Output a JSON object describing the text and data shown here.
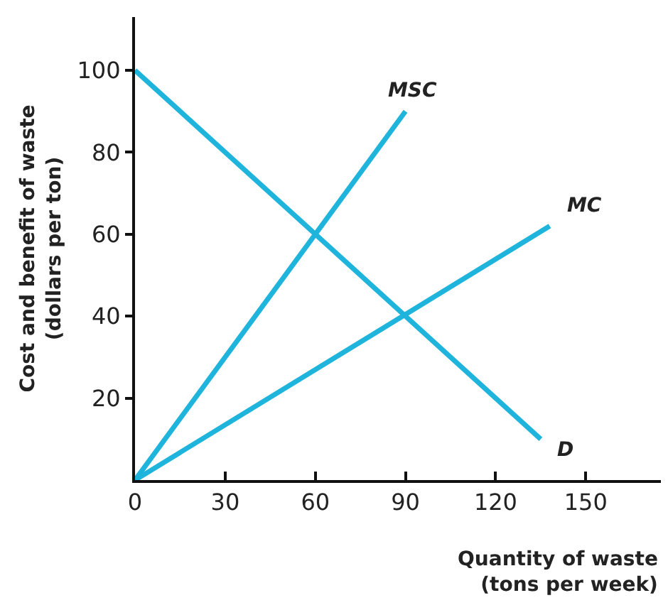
{
  "chart_data": {
    "type": "line",
    "xlabel": "Quantity of waste\n(tons per week)",
    "ylabel": "Cost and benefit of waste\n(dollars per ton)",
    "xlim": [
      0,
      175
    ],
    "ylim": [
      0,
      113
    ],
    "xticks": [
      0,
      30,
      60,
      90,
      120,
      150
    ],
    "yticks": [
      20,
      40,
      60,
      80,
      100
    ],
    "legend": false,
    "marker": "none",
    "line_style": "solid",
    "series": [
      {
        "name": "MSC",
        "color": "#1eb4dc",
        "x": [
          0,
          90
        ],
        "values": [
          0,
          90
        ]
      },
      {
        "name": "MC",
        "color": "#1eb4dc",
        "x": [
          0,
          138
        ],
        "values": [
          0,
          62
        ]
      },
      {
        "name": "D",
        "color": "#1eb4dc",
        "x": [
          0,
          135
        ],
        "values": [
          100,
          10
        ]
      }
    ]
  }
}
